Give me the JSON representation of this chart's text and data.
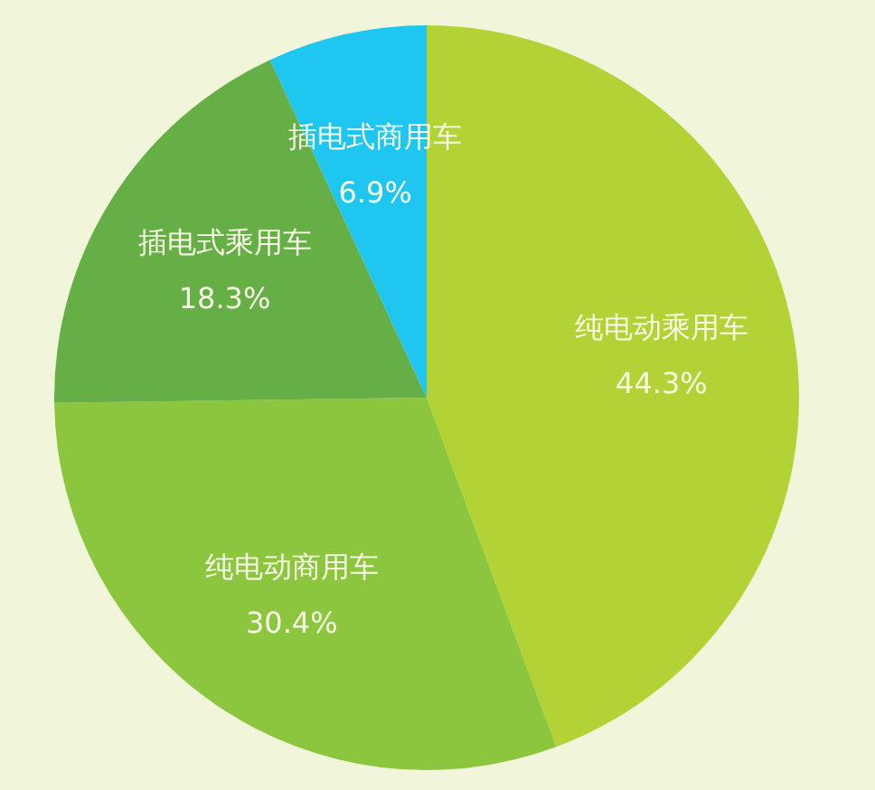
{
  "chart_data": {
    "type": "pie",
    "categories": [
      "纯电动乘用车",
      "纯电动商用车",
      "插电式乘用车",
      "插电式商用车"
    ],
    "values": [
      44.3,
      30.4,
      18.3,
      6.9
    ],
    "colors": [
      "#b2d235",
      "#8cc63f",
      "#66ae46",
      "#1ec6f0"
    ],
    "value_labels": [
      "44.3%",
      "30.4%",
      "18.3%",
      "6.9%"
    ]
  }
}
